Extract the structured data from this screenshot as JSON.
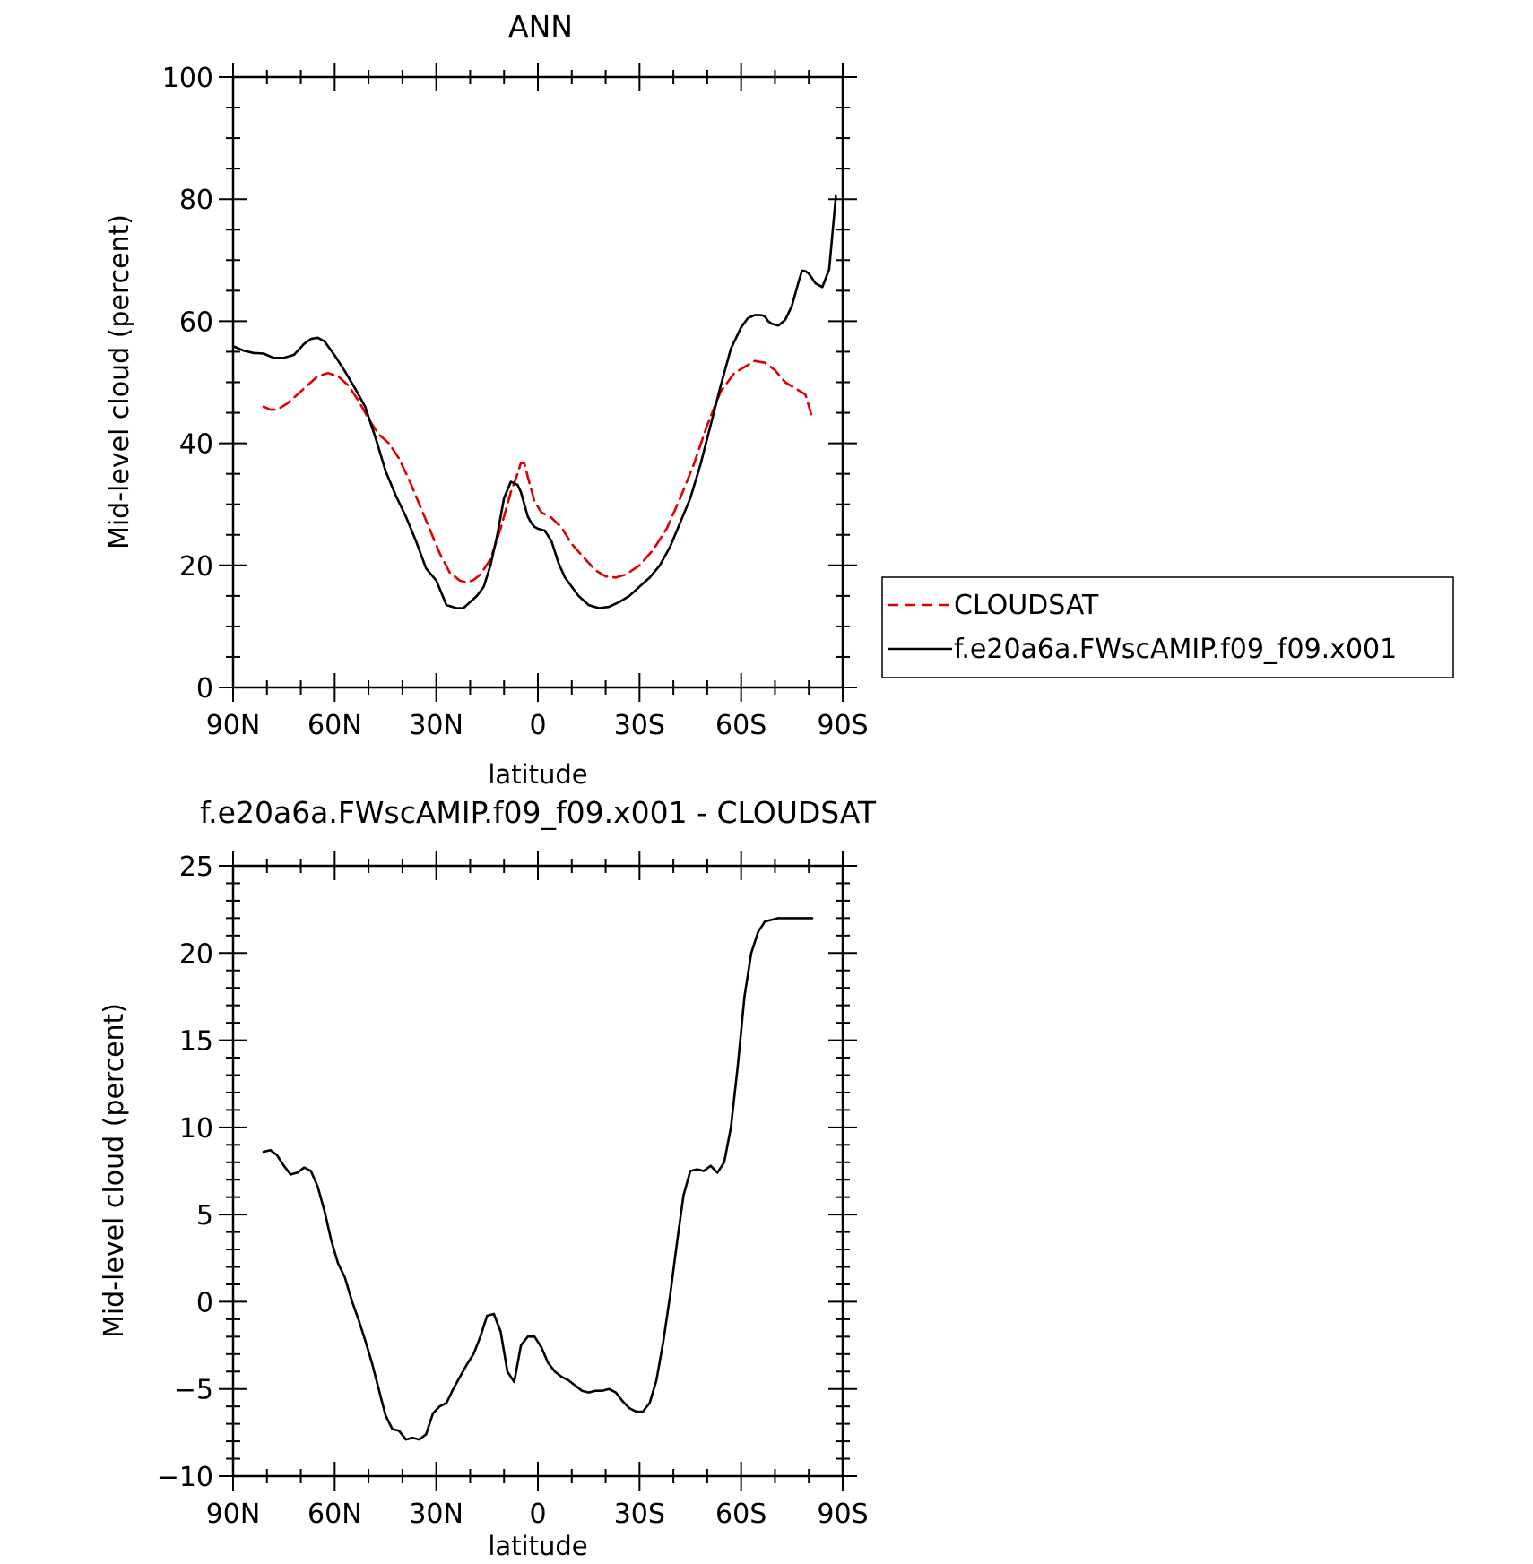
{
  "chart_data": [
    {
      "type": "line",
      "title": "ANN",
      "xlabel": "latitude",
      "ylabel": "Mid-level cloud (percent)",
      "xlim": [
        90,
        -90
      ],
      "ylim": [
        0,
        100
      ],
      "x_ticks": [
        {
          "value": 90,
          "label": "90N"
        },
        {
          "value": 60,
          "label": "60N"
        },
        {
          "value": 30,
          "label": "30N"
        },
        {
          "value": 0,
          "label": "0"
        },
        {
          "value": -30,
          "label": "30S"
        },
        {
          "value": -60,
          "label": "60S"
        },
        {
          "value": -90,
          "label": "90S"
        }
      ],
      "y_ticks": [
        {
          "value": 0,
          "label": "0"
        },
        {
          "value": 20,
          "label": "20"
        },
        {
          "value": 40,
          "label": "40"
        },
        {
          "value": 60,
          "label": "60"
        },
        {
          "value": 80,
          "label": "80"
        },
        {
          "value": 100,
          "label": "100"
        }
      ],
      "legend_position": "right",
      "series": [
        {
          "name": "CLOUDSAT",
          "color": "#e00000",
          "style": "dashed",
          "x": [
            81,
            79,
            77,
            74,
            71,
            68,
            65,
            62,
            59,
            56,
            53,
            50,
            47,
            44,
            41,
            38,
            35,
            32,
            29,
            26,
            23,
            21,
            19,
            17,
            14,
            11,
            8,
            6,
            5,
            4,
            3,
            1,
            -1,
            -4,
            -7,
            -10,
            -14,
            -17,
            -20,
            -23,
            -26,
            -30,
            -34,
            -38,
            -42,
            -46,
            -50,
            -54,
            -58,
            -61,
            -64,
            -67,
            -70,
            -73,
            -76,
            -79,
            -81
          ],
          "y": [
            46,
            45.5,
            45.5,
            46.5,
            48,
            49.5,
            51,
            51.5,
            51,
            49.5,
            47,
            44,
            41.5,
            40,
            37.5,
            34,
            30,
            26,
            22,
            18.8,
            17.5,
            17.2,
            17.6,
            18.5,
            21,
            26,
            32,
            35,
            36.8,
            36.7,
            34.5,
            30.5,
            28.7,
            27.8,
            26.2,
            23.5,
            21,
            19.2,
            18.2,
            18,
            18.5,
            20,
            22.5,
            26,
            31,
            36.5,
            43,
            48.5,
            51.5,
            52.5,
            53.5,
            53.2,
            52,
            50,
            49,
            48,
            44.2
          ]
        },
        {
          "name": "f.e20a6a.FWscAMIP.f09_f09.x001",
          "color": "#000000",
          "style": "solid",
          "x": [
            89.5,
            87,
            84,
            81,
            78,
            75,
            72,
            69,
            67,
            65,
            63,
            60,
            57,
            54,
            51,
            48,
            45,
            42,
            39,
            36,
            33,
            30,
            27,
            24,
            22,
            20,
            18,
            16,
            14,
            12,
            10,
            8,
            6,
            5,
            4,
            3,
            2,
            1,
            0,
            -2,
            -4,
            -6,
            -8,
            -10,
            -12,
            -15,
            -18,
            -21,
            -24,
            -27,
            -30,
            -33,
            -36,
            -39,
            -42,
            -45,
            -48,
            -51,
            -54,
            -57,
            -60,
            -62,
            -64,
            -66,
            -67,
            -68,
            -69,
            -71,
            -73,
            -75,
            -77,
            -78,
            -79,
            -80,
            -82,
            -84,
            -86,
            -88
          ],
          "y": [
            55.8,
            55.2,
            54.8,
            54.7,
            54,
            54,
            54.5,
            56.3,
            57.1,
            57.3,
            56.7,
            54.4,
            51.8,
            49,
            46,
            41,
            35.5,
            31.5,
            28,
            24,
            19.5,
            17.5,
            13.5,
            13,
            13,
            14,
            15,
            16.5,
            20,
            25,
            31,
            33.7,
            33.2,
            32,
            30,
            28,
            27,
            26.3,
            26,
            25.7,
            24,
            20.5,
            18,
            16.5,
            15,
            13.5,
            13,
            13.2,
            14,
            15,
            16.5,
            18,
            20,
            23,
            27,
            31,
            36.5,
            43,
            49.5,
            55.5,
            59,
            60.5,
            61,
            61,
            60.8,
            60,
            59.6,
            59.3,
            60.2,
            62.5,
            66.5,
            68.3,
            68.2,
            67.8,
            66.2,
            65.6,
            68.5,
            80.5
          ]
        }
      ]
    },
    {
      "type": "line",
      "title": "f.e20a6a.FWscAMIP.f09_f09.x001 - CLOUDSAT",
      "xlabel": "latitude",
      "ylabel": "Mid-level cloud (percent)",
      "xlim": [
        90,
        -90
      ],
      "ylim": [
        -10,
        25
      ],
      "x_ticks": [
        {
          "value": 90,
          "label": "90N"
        },
        {
          "value": 60,
          "label": "60N"
        },
        {
          "value": 30,
          "label": "30N"
        },
        {
          "value": 0,
          "label": "0"
        },
        {
          "value": -30,
          "label": "30S"
        },
        {
          "value": -60,
          "label": "60S"
        },
        {
          "value": -90,
          "label": "90S"
        }
      ],
      "y_ticks": [
        {
          "value": -10,
          "label": "−10"
        },
        {
          "value": -5,
          "label": "−5"
        },
        {
          "value": 0,
          "label": "0"
        },
        {
          "value": 5,
          "label": "5"
        },
        {
          "value": 10,
          "label": "10"
        },
        {
          "value": 15,
          "label": "15"
        },
        {
          "value": 20,
          "label": "20"
        },
        {
          "value": 25,
          "label": "25"
        }
      ],
      "series": [
        {
          "color": "#000000",
          "style": "solid",
          "x": [
            81,
            79,
            77,
            75,
            73,
            71,
            69,
            67,
            65,
            63,
            61,
            59,
            57,
            55,
            53,
            51,
            49,
            47,
            45,
            43,
            41,
            39,
            37,
            35,
            33,
            31,
            29,
            27,
            25,
            23,
            21,
            19,
            17,
            15,
            13,
            11,
            9,
            7,
            5,
            3,
            1,
            -1,
            -3,
            -5,
            -7,
            -9,
            -11,
            -13,
            -15,
            -17,
            -19,
            -21,
            -23,
            -25,
            -27,
            -29,
            -31,
            -33,
            -35,
            -37,
            -39,
            -41,
            -43,
            -45,
            -47,
            -49,
            -51,
            -53,
            -55,
            -57,
            -59,
            -61,
            -63,
            -65,
            -67,
            -69,
            -71,
            -73,
            -75,
            -77,
            -79,
            -81
          ],
          "y": [
            8.6,
            8.7,
            8.4,
            7.8,
            7.3,
            7.4,
            7.7,
            7.5,
            6.6,
            5.2,
            3.5,
            2.2,
            1.4,
            0.1,
            -1.0,
            -2.2,
            -3.5,
            -5.0,
            -6.5,
            -7.3,
            -7.4,
            -7.9,
            -7.8,
            -7.9,
            -7.6,
            -6.4,
            -6.0,
            -5.8,
            -5.0,
            -4.3,
            -3.6,
            -3.0,
            -2.0,
            -0.8,
            -0.7,
            -1.7,
            -4.0,
            -4.6,
            -2.5,
            -2.0,
            -2.0,
            -2.6,
            -3.5,
            -4.0,
            -4.3,
            -4.5,
            -4.8,
            -5.1,
            -5.2,
            -5.1,
            -5.1,
            -5.0,
            -5.2,
            -5.7,
            -6.1,
            -6.3,
            -6.3,
            -5.8,
            -4.5,
            -2.3,
            0.3,
            3.3,
            6.1,
            7.5,
            7.6,
            7.5,
            7.8,
            7.4,
            8.0,
            10.0,
            13.5,
            17.5,
            20.0,
            21.2,
            21.8,
            21.9,
            22.0,
            22.0,
            22.0,
            22.0,
            22.0,
            22.0
          ]
        }
      ]
    }
  ]
}
